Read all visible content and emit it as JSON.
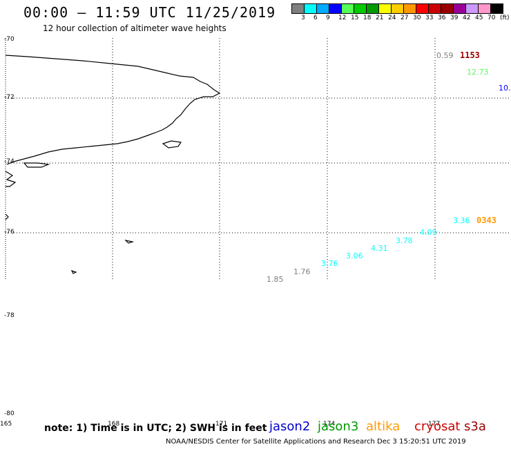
{
  "header": {
    "title": "00:00 – 11:59 UTC 11/25/2019",
    "subtitle": "12 hour collection of altimeter wave heights"
  },
  "color_scale": {
    "colors": [
      "#7f7f7f",
      "#00ffff",
      "#00aaff",
      "#0000ff",
      "#55ff55",
      "#00cc00",
      "#009900",
      "#ffff00",
      "#ffcc00",
      "#ff9900",
      "#ff0000",
      "#cc0000",
      "#990000",
      "#990099",
      "#cc99ff",
      "#ff99cc",
      "#000000"
    ],
    "labels": [
      "3",
      "6",
      "9",
      "12",
      "15",
      "18",
      "21",
      "24",
      "27",
      "30",
      "33",
      "36",
      "39",
      "42",
      "45",
      "70",
      "(ft)"
    ]
  },
  "lat_labels": [
    "-70",
    "-72",
    "-74",
    "-76",
    "-78",
    "-80"
  ],
  "lon_labels": [
    "165",
    "168",
    "171",
    "174",
    "177"
  ],
  "wave_heights": [
    {
      "text": "0.59",
      "color": "#7f7f7f"
    },
    {
      "text": "12.73",
      "color": "#55ff55"
    },
    {
      "text": "10.",
      "color": "#0000ff"
    },
    {
      "text": "3.36",
      "color": "#00ffff"
    },
    {
      "text": "4.09",
      "color": "#00ffff"
    },
    {
      "text": "3.78",
      "color": "#00ffff"
    },
    {
      "text": "4.31",
      "color": "#00ffff"
    },
    {
      "text": "3.06",
      "color": "#00ffff"
    },
    {
      "text": "3.76",
      "color": "#00ffff"
    },
    {
      "text": "1.76",
      "color": "#7f7f7f"
    },
    {
      "text": "1.85",
      "color": "#7f7f7f"
    }
  ],
  "time_labels": [
    {
      "text": "1153",
      "color": "#990000"
    },
    {
      "text": "0343",
      "color": "#ff9900"
    }
  ],
  "note": "note: 1) Time is in UTC; 2) SWH is in feet",
  "satellites": [
    {
      "name": "jason2",
      "color": "#0000cc"
    },
    {
      "name": "jason3",
      "color": "#009900"
    },
    {
      "name": "altika",
      "color": "#ff9900"
    },
    {
      "name": "cryosat",
      "color": "#cc0000"
    },
    {
      "name": "s3a",
      "color": "#990000"
    }
  ],
  "footer": "NOAA/NESDIS Center for Satellite Applications and Research   Dec  3 15:20:51 UTC 2019"
}
